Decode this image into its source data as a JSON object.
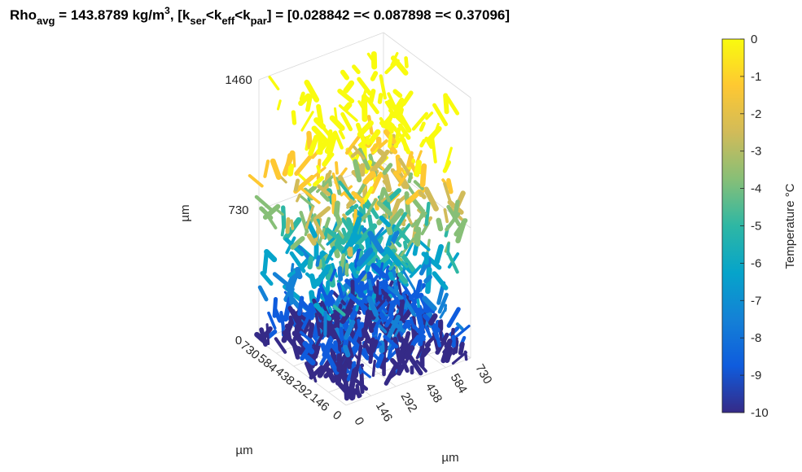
{
  "chart_data": {
    "type": "scatter3d",
    "title": [
      "Rho",
      "avg",
      " = 143.8789 kg/m",
      "3",
      ",   [k",
      "ser",
      "<k",
      "eff",
      "<k",
      "par",
      "] = [0.028842 =< 0.087898 =< 0.37096]"
    ],
    "xlabel": "µm",
    "ylabel": "µm",
    "zlabel": "µm",
    "xlim": [
      0,
      730
    ],
    "xticks": [
      0,
      146,
      292,
      438,
      584,
      730
    ],
    "ylim": [
      0,
      730
    ],
    "yticks": [
      0,
      146,
      292,
      438,
      584,
      730
    ],
    "zlim": [
      0,
      1460
    ],
    "zticks": [
      0,
      730,
      1460
    ],
    "colorbar": {
      "label": "Temperature °C",
      "clim": [
        -10,
        0
      ],
      "ticks": [
        -10,
        -9,
        -8,
        -7,
        -6,
        -5,
        -4,
        -3,
        -2,
        -1,
        0
      ]
    },
    "colormap": [
      "#352a87",
      "#0f5cdd",
      "#1481d6",
      "#06a4ca",
      "#2eb7a4",
      "#87bf77",
      "#d1bb59",
      "#fec832",
      "#f9fb0e"
    ]
  }
}
